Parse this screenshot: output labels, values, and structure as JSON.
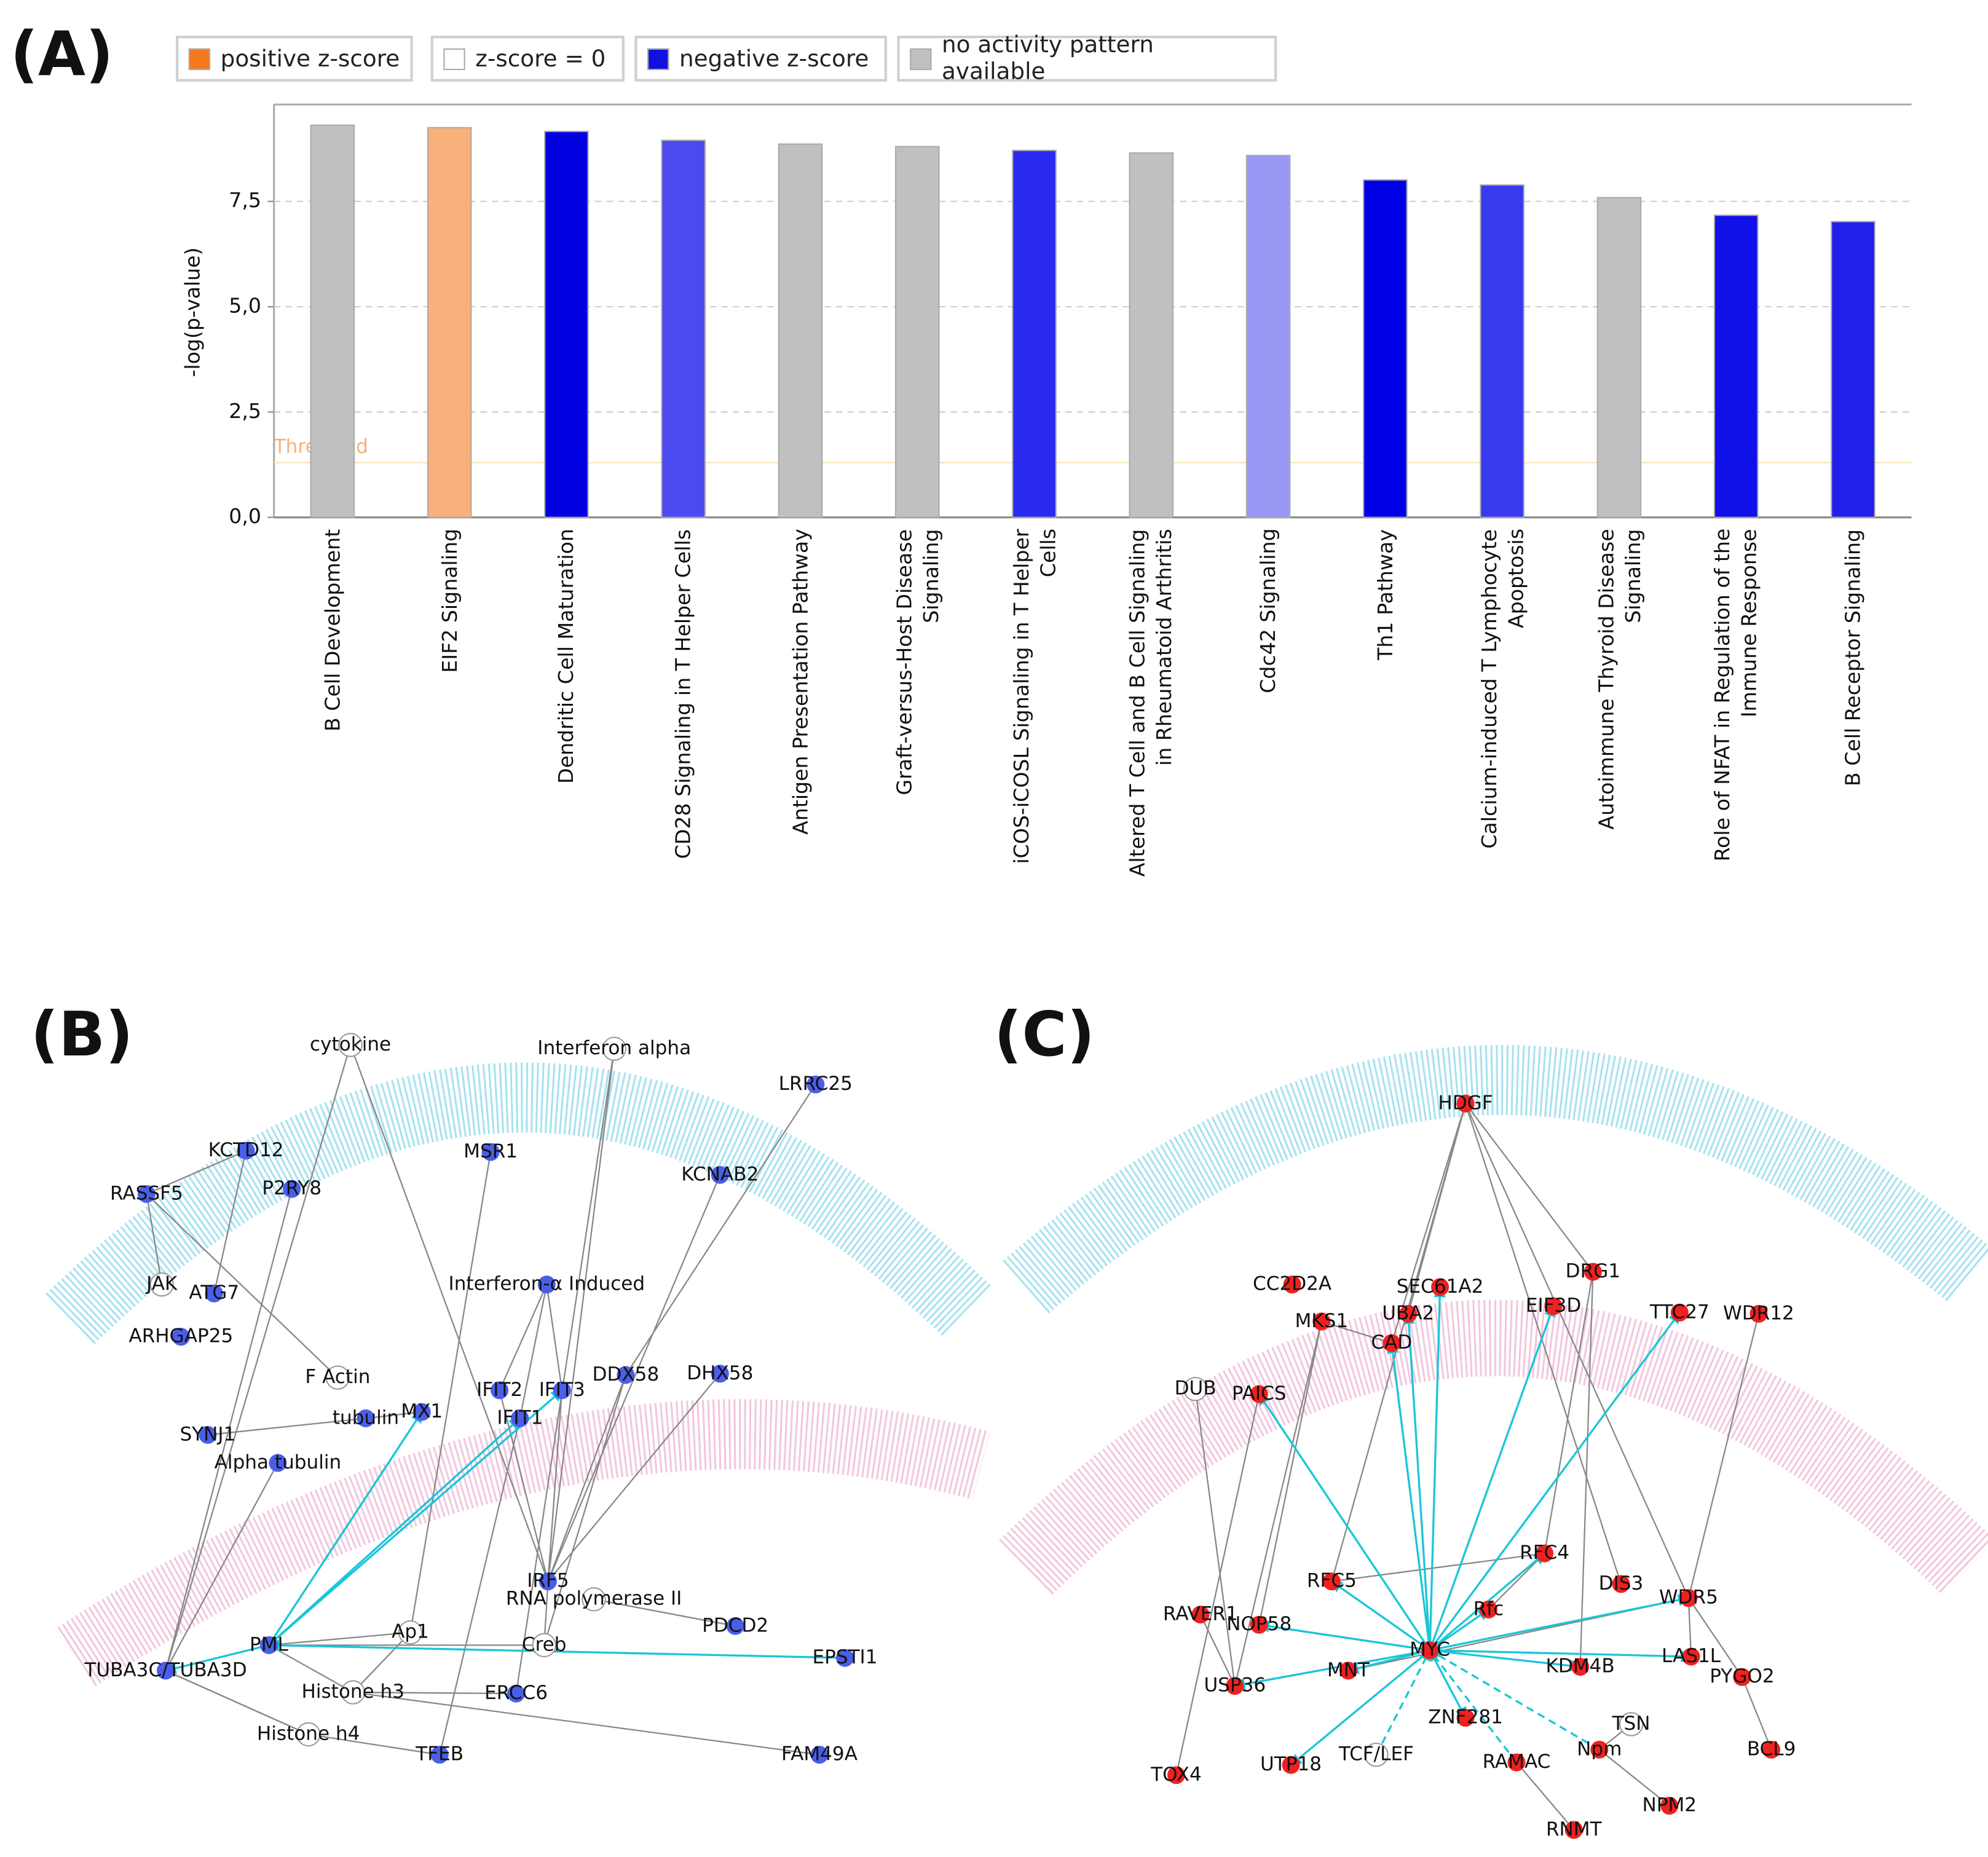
{
  "panel_labels": [
    "(A)",
    "(B)",
    "(C)"
  ],
  "chart_data": {
    "type": "bar",
    "legend": [
      {
        "label": "positive z-score",
        "color": "#f47a20"
      },
      {
        "label": "z-score = 0",
        "color": "#ffffff"
      },
      {
        "label": "negative z-score",
        "color": "#1010e0"
      },
      {
        "label": "no activity pattern available",
        "color": "#c0c0c0"
      }
    ],
    "ylabel": "-log(p-value)",
    "categories": [
      "B Cell Development",
      "EIF2 Signaling",
      "Dendritic Cell Maturation",
      "CD28 Signaling in T Helper Cells",
      "Antigen Presentation Pathway",
      "Graft-versus-Host Disease\nSignaling",
      "iCOS-iCOSL Signaling in T Helper\nCells",
      "Altered T Cell and B Cell Signaling\nin Rheumatoid Arthritis",
      "Cdc42 Signaling",
      "Th1 Pathway",
      "Calcium-induced T Lymphocyte\nApoptosis",
      "Autoimmune Thyroid Disease\nSignaling",
      "Role of NFAT in Regulation of the\nImmune Response",
      "B Cell Receptor Signaling"
    ],
    "values": [
      9.31,
      9.25,
      9.16,
      8.95,
      8.86,
      8.8,
      8.71,
      8.65,
      8.59,
      8.01,
      7.89,
      7.59,
      7.17,
      7.02
    ],
    "colors": [
      "#c0c0c0",
      "#f9b07a",
      "#0000e0",
      "#4a4af0",
      "#c0c0c0",
      "#c0c0c0",
      "#2a2af0",
      "#c0c0c0",
      "#9999f5",
      "#0000e6",
      "#3a3aee",
      "#c0c0c0",
      "#1010e8",
      "#2020ea"
    ],
    "ylim": [
      0,
      9.8
    ],
    "yticks": [
      {
        "value": 0,
        "label": "0,0"
      },
      {
        "value": 2.5,
        "label": "2,5"
      },
      {
        "value": 5,
        "label": "5,0"
      },
      {
        "value": 7.5,
        "label": "7,5"
      }
    ],
    "threshold": {
      "value": 1.3,
      "label": "Threshold",
      "color": "#f9b07a"
    },
    "grid": true
  },
  "network_b": {
    "nodes": [
      {
        "label": "cytokine",
        "color": "#ffffff"
      },
      {
        "label": "Interferon alpha",
        "color": "#ffffff"
      },
      {
        "label": "LRRC25",
        "color": "#4a5ee8"
      },
      {
        "label": "KCTD12",
        "color": "#4a5ee8"
      },
      {
        "label": "MSR1",
        "color": "#4a5ee8"
      },
      {
        "label": "KCNAB2",
        "color": "#4a5ee8"
      },
      {
        "label": "RASSF5",
        "color": "#4a5ee8"
      },
      {
        "label": "P2RY8",
        "color": "#4a5ee8"
      },
      {
        "label": "Interferon-α Induced",
        "color": "#4a5ee8"
      },
      {
        "label": "JAK",
        "color": "#ffffff"
      },
      {
        "label": "ATG7",
        "color": "#4a5ee8"
      },
      {
        "label": "ARHGAP25",
        "color": "#4a5ee8"
      },
      {
        "label": "F Actin",
        "color": "#ffffff"
      },
      {
        "label": "IFIT2",
        "color": "#4a5ee8"
      },
      {
        "label": "IFIT3",
        "color": "#4a5ee8"
      },
      {
        "label": "DDX58",
        "color": "#4a5ee8"
      },
      {
        "label": "DHX58",
        "color": "#4a5ee8"
      },
      {
        "label": "MX1",
        "color": "#4a5ee8"
      },
      {
        "label": "tubulin",
        "color": "#4a5ee8"
      },
      {
        "label": "SYNJ1",
        "color": "#4a5ee8"
      },
      {
        "label": "IFIT1",
        "color": "#4a5ee8"
      },
      {
        "label": "Alpha tubulin",
        "color": "#4a5ee8"
      },
      {
        "label": "IRF5",
        "color": "#4a5ee8"
      },
      {
        "label": "RNA polymerase II",
        "color": "#ffffff"
      },
      {
        "label": "PDCD2",
        "color": "#4a5ee8"
      },
      {
        "label": "PML",
        "color": "#4a5ee8"
      },
      {
        "label": "Ap1",
        "color": "#ffffff"
      },
      {
        "label": "Creb",
        "color": "#ffffff"
      },
      {
        "label": "EPSTI1",
        "color": "#4a5ee8"
      },
      {
        "label": "TUBA3C/TUBA3D",
        "color": "#4a5ee8"
      },
      {
        "label": "Histone h3",
        "color": "#ffffff"
      },
      {
        "label": "ERCC6",
        "color": "#4a5ee8"
      },
      {
        "label": "Histone h4",
        "color": "#ffffff"
      },
      {
        "label": "TFEB",
        "color": "#4a5ee8"
      },
      {
        "label": "FAM49A",
        "color": "#4a5ee8"
      }
    ]
  },
  "network_c": {
    "nodes": [
      {
        "label": "HDGF",
        "color": "#f02020"
      },
      {
        "label": "CC2D2A",
        "color": "#f02020"
      },
      {
        "label": "SEC61A2",
        "color": "#f02020"
      },
      {
        "label": "DRG1",
        "color": "#f02020"
      },
      {
        "label": "MKS1",
        "color": "#f02020"
      },
      {
        "label": "UBA2",
        "color": "#f02020"
      },
      {
        "label": "EIF3D",
        "color": "#f02020"
      },
      {
        "label": "TTC27",
        "color": "#f02020"
      },
      {
        "label": "WDR12",
        "color": "#f02020"
      },
      {
        "label": "CAD",
        "color": "#f02020"
      },
      {
        "label": "DUB",
        "color": "#ffffff"
      },
      {
        "label": "PAICS",
        "color": "#f02020"
      },
      {
        "label": "RFC5",
        "color": "#f02020"
      },
      {
        "label": "RFC4",
        "color": "#f02020"
      },
      {
        "label": "DIS3",
        "color": "#f02020"
      },
      {
        "label": "WDR5",
        "color": "#f02020"
      },
      {
        "label": "Rfc",
        "color": "#f02020"
      },
      {
        "label": "RAVER1",
        "color": "#f02020"
      },
      {
        "label": "NOP58",
        "color": "#f02020"
      },
      {
        "label": "MYC",
        "color": "#f02020"
      },
      {
        "label": "KDM4B",
        "color": "#f02020"
      },
      {
        "label": "LAS1L",
        "color": "#f02020"
      },
      {
        "label": "PYGO2",
        "color": "#f02020"
      },
      {
        "label": "MNT",
        "color": "#f02020"
      },
      {
        "label": "USP36",
        "color": "#f02020"
      },
      {
        "label": "ZNF281",
        "color": "#f02020"
      },
      {
        "label": "TSN",
        "color": "#ffffff"
      },
      {
        "label": "UTP18",
        "color": "#f02020"
      },
      {
        "label": "TCF/LEF",
        "color": "#ffffff"
      },
      {
        "label": "Npm",
        "color": "#f02020"
      },
      {
        "label": "RAMAC",
        "color": "#f02020"
      },
      {
        "label": "BCL9",
        "color": "#f02020"
      },
      {
        "label": "NPM2",
        "color": "#f02020"
      },
      {
        "label": "TOX4",
        "color": "#f02020"
      },
      {
        "label": "RNMT",
        "color": "#f02020"
      }
    ]
  }
}
